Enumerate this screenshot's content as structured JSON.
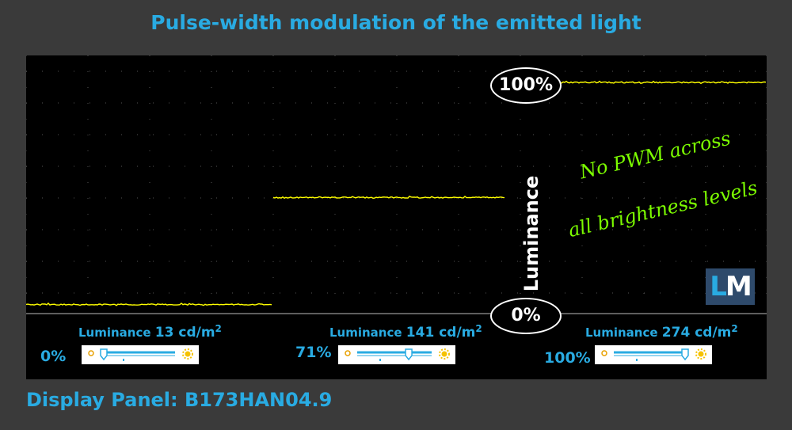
{
  "title": "Pulse-width modulation of the emitted light",
  "footer": "Display Panel: B173HAN04.9",
  "y_axis_label": "Luminance",
  "marker_top": "100%",
  "marker_bottom": "0%",
  "annotation_line1": "No PWM across",
  "annotation_line2": "all brightness levels",
  "logo": {
    "l": "L",
    "m": "M"
  },
  "colors": {
    "background": "#3a3a3a",
    "panel": "#000000",
    "accent": "#29abe2",
    "trace": "#ffff00",
    "annotation": "#7cfc00"
  },
  "segments": [
    {
      "luminance_label": "Luminance",
      "luminance_value": "13 cd/m",
      "unit_sup": "2",
      "brightness_label": "0%",
      "brightness": 0
    },
    {
      "luminance_label": "Luminance",
      "luminance_value": "141 cd/m",
      "unit_sup": "2",
      "brightness_label": "71%",
      "brightness": 71
    },
    {
      "luminance_label": "Luminance",
      "luminance_value": "274 cd/m",
      "unit_sup": "2",
      "brightness_label": "100%",
      "brightness": 100
    }
  ],
  "chart_data": {
    "type": "line",
    "title": "Pulse-width modulation of the emitted light",
    "ylabel": "Luminance",
    "ylim": [
      0,
      100
    ],
    "grid": true,
    "series": [
      {
        "name": "0%",
        "luminance_cd_m2": 13,
        "level": 1.6
      },
      {
        "name": "71%",
        "luminance_cd_m2": 141,
        "level": 49
      },
      {
        "name": "100%",
        "luminance_cd_m2": 274,
        "level": 100
      }
    ]
  }
}
